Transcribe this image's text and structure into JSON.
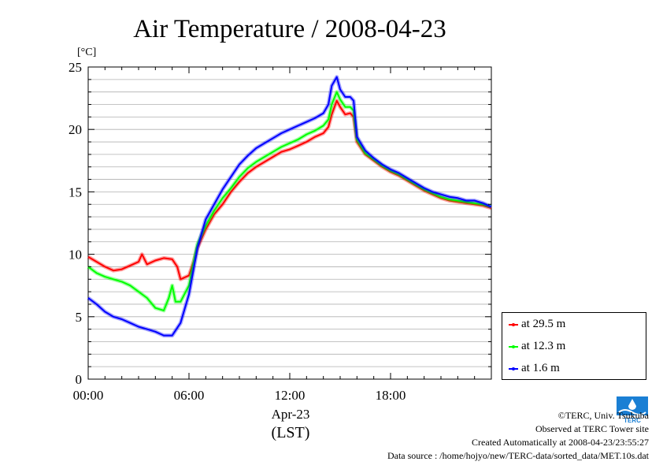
{
  "chart_data": {
    "type": "line",
    "title": "Air Temperature / 2008-04-23",
    "ylabel": "[°C]",
    "xlabel_date": "Apr-23",
    "xlabel_zone": "(LST)",
    "ylim": [
      0,
      25
    ],
    "xlim": [
      0,
      24
    ],
    "x_unit": "hours",
    "y_ticks": [
      0,
      5,
      10,
      15,
      20,
      25
    ],
    "x_ticks": [
      {
        "value": 0,
        "label": "00:00"
      },
      {
        "value": 6,
        "label": "06:00"
      },
      {
        "value": 12,
        "label": "12:00"
      },
      {
        "value": 18,
        "label": "18:00"
      }
    ],
    "grid": true,
    "legend_position": "right",
    "series": [
      {
        "name": "at 29.5 m",
        "color": "#ff0000",
        "x": [
          0,
          0.5,
          1,
          1.5,
          2,
          2.5,
          3,
          3.2,
          3.5,
          4,
          4.5,
          5,
          5.3,
          5.5,
          6,
          6.3,
          6.5,
          7,
          7.5,
          8,
          8.5,
          9,
          9.5,
          10,
          10.5,
          11,
          11.5,
          12,
          12.5,
          13,
          13.5,
          14,
          14.3,
          14.5,
          14.8,
          15,
          15.3,
          15.6,
          15.8,
          16,
          16.5,
          17,
          17.5,
          18,
          18.5,
          19,
          19.5,
          20,
          20.5,
          21,
          21.5,
          22,
          22.5,
          23,
          23.5,
          24
        ],
        "y": [
          9.8,
          9.4,
          9.0,
          8.7,
          8.8,
          9.1,
          9.4,
          10.0,
          9.2,
          9.5,
          9.7,
          9.6,
          9.0,
          8.0,
          8.3,
          9.5,
          10.5,
          12.0,
          13.2,
          14.0,
          15.0,
          15.8,
          16.5,
          17.0,
          17.4,
          17.8,
          18.2,
          18.4,
          18.7,
          19.0,
          19.4,
          19.7,
          20.2,
          21.2,
          22.3,
          21.8,
          21.2,
          21.3,
          21.0,
          19.0,
          18.0,
          17.5,
          17.0,
          16.6,
          16.3,
          15.9,
          15.5,
          15.1,
          14.8,
          14.5,
          14.3,
          14.2,
          14.1,
          14.0,
          13.9,
          13.7
        ]
      },
      {
        "name": "at 12.3 m",
        "color": "#00ff00",
        "x": [
          0,
          0.5,
          1,
          1.5,
          2,
          2.5,
          3,
          3.5,
          4,
          4.5,
          4.8,
          5,
          5.2,
          5.5,
          6,
          6.3,
          6.5,
          7,
          7.5,
          8,
          8.5,
          9,
          9.5,
          10,
          10.5,
          11,
          11.5,
          12,
          12.5,
          13,
          13.5,
          14,
          14.3,
          14.5,
          14.8,
          15,
          15.3,
          15.6,
          15.8,
          16,
          16.5,
          17,
          17.5,
          18,
          18.5,
          19,
          19.5,
          20,
          20.5,
          21,
          21.5,
          22,
          22.5,
          23,
          23.5,
          24
        ],
        "y": [
          9.0,
          8.5,
          8.2,
          8.0,
          7.8,
          7.5,
          7.0,
          6.5,
          5.7,
          5.5,
          6.5,
          7.5,
          6.2,
          6.2,
          7.5,
          9.5,
          10.8,
          12.3,
          13.5,
          14.5,
          15.3,
          16.2,
          16.9,
          17.4,
          17.8,
          18.2,
          18.6,
          18.9,
          19.2,
          19.6,
          19.9,
          20.3,
          20.8,
          22.0,
          23.0,
          22.4,
          21.8,
          21.8,
          21.5,
          19.2,
          18.1,
          17.6,
          17.1,
          16.7,
          16.4,
          16.0,
          15.6,
          15.2,
          14.9,
          14.6,
          14.4,
          14.3,
          14.2,
          14.1,
          14.0,
          13.8
        ]
      },
      {
        "name": "at 1.6 m",
        "color": "#0000ff",
        "x": [
          0,
          0.5,
          1,
          1.5,
          2,
          2.5,
          3,
          3.5,
          4,
          4.5,
          5,
          5.5,
          6,
          6.3,
          6.5,
          7,
          7.5,
          8,
          8.5,
          9,
          9.5,
          10,
          10.5,
          11,
          11.5,
          12,
          12.5,
          13,
          13.5,
          14,
          14.3,
          14.5,
          14.8,
          15,
          15.3,
          15.6,
          15.8,
          16,
          16.5,
          17,
          17.5,
          18,
          18.5,
          19,
          19.5,
          20,
          20.5,
          21,
          21.5,
          22,
          22.5,
          23,
          23.5,
          24
        ],
        "y": [
          6.5,
          6.0,
          5.4,
          5.0,
          4.8,
          4.5,
          4.2,
          4.0,
          3.8,
          3.5,
          3.5,
          4.5,
          6.8,
          9.0,
          10.5,
          12.8,
          14.0,
          15.2,
          16.2,
          17.2,
          17.9,
          18.5,
          18.9,
          19.3,
          19.7,
          20.0,
          20.3,
          20.6,
          20.9,
          21.3,
          22.0,
          23.5,
          24.2,
          23.2,
          22.6,
          22.6,
          22.3,
          19.4,
          18.3,
          17.7,
          17.2,
          16.8,
          16.5,
          16.1,
          15.7,
          15.3,
          15.0,
          14.8,
          14.6,
          14.5,
          14.3,
          14.3,
          14.1,
          13.8
        ]
      }
    ]
  },
  "footer": {
    "line1": "©TERC, Univ. Tsukuba",
    "line2": "Observed at TERC Tower site",
    "line3": "Created Automatically at 2008-04-23/23:55:27",
    "line4": "Data source : /home/hojyo/new/TERC-data/sorted_data/MET.10s.dat"
  },
  "logo": {
    "text": "TERC",
    "color": "#1a7fd4"
  }
}
